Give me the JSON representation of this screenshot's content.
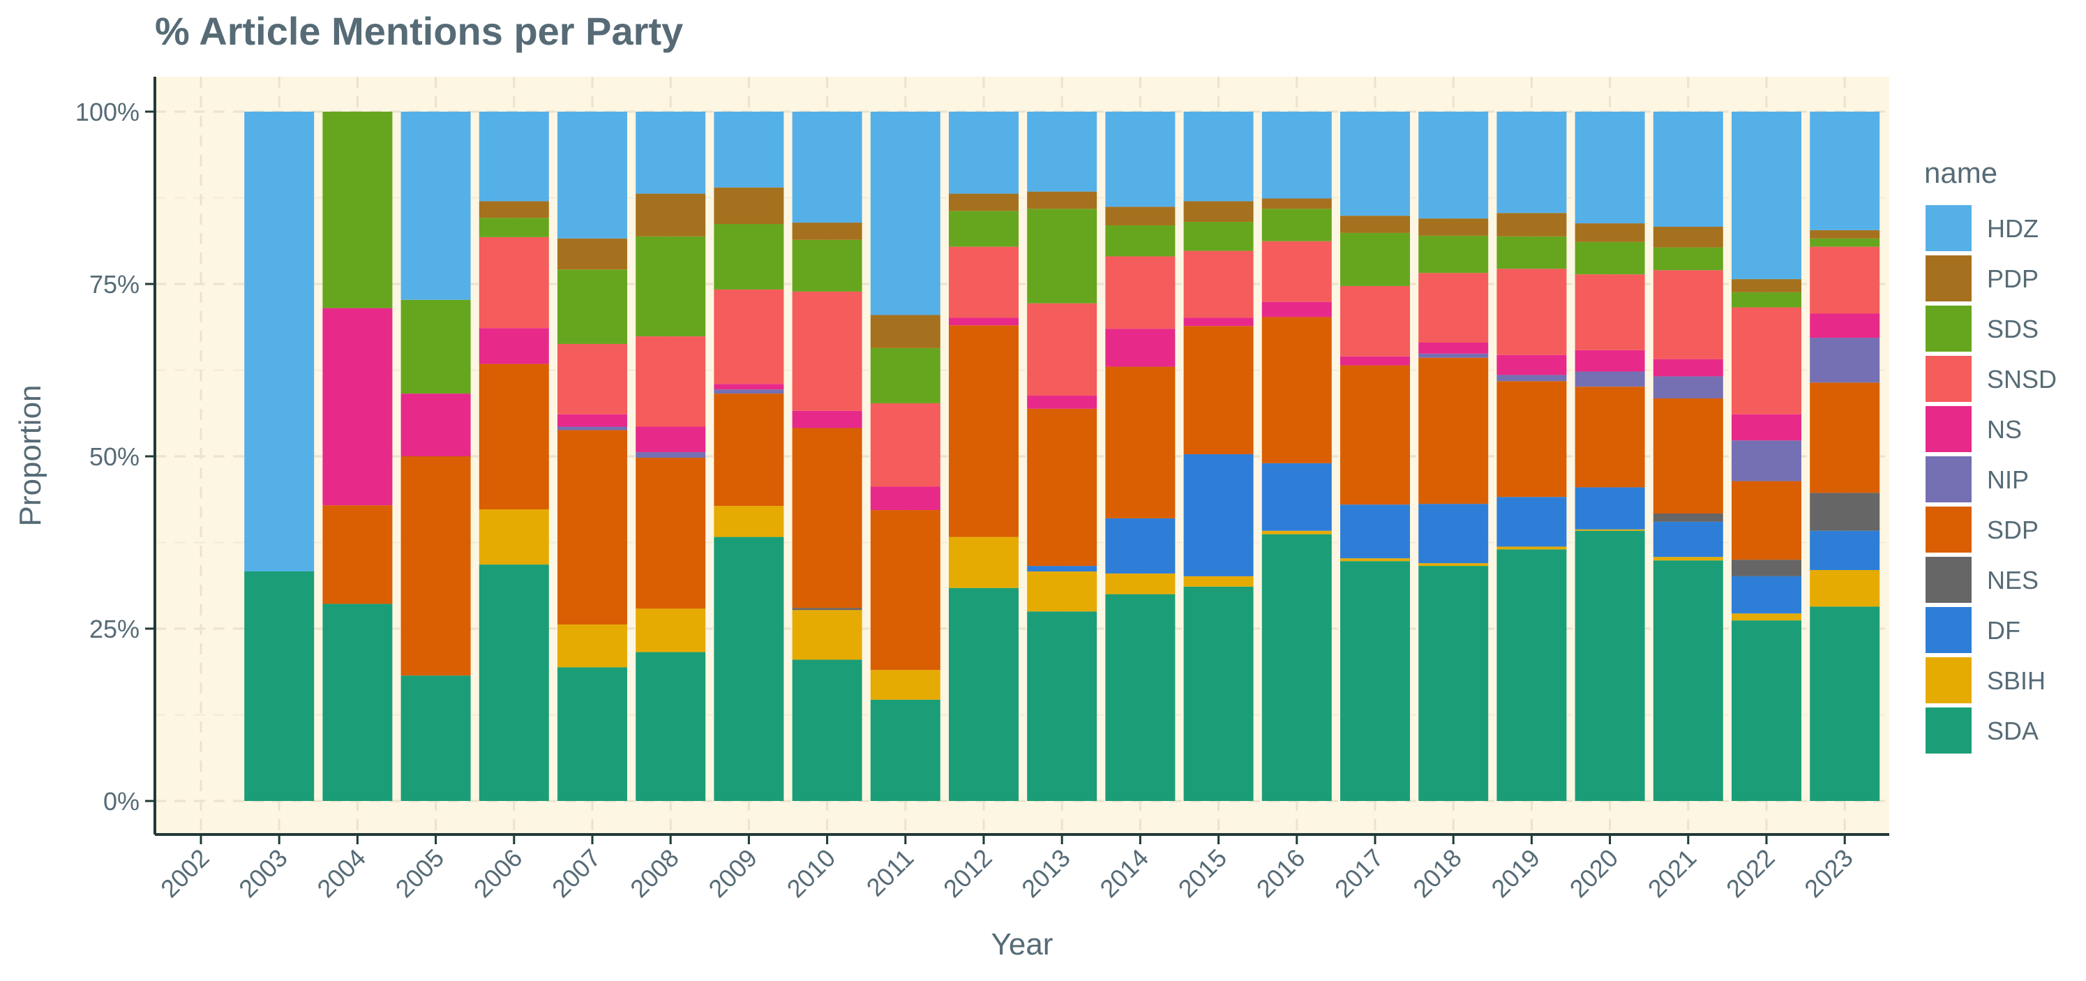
{
  "chart_data": {
    "type": "bar",
    "stacked": true,
    "title": "% Article Mentions per Party",
    "xlabel": "Year",
    "ylabel": "Proportion",
    "ylim": [
      0,
      1
    ],
    "y_ticks": [
      0,
      0.25,
      0.5,
      0.75,
      1.0
    ],
    "y_tick_labels": [
      "0%",
      "25%",
      "50%",
      "75%",
      "100%"
    ],
    "x_ticks": [
      "2002",
      "2003",
      "2004",
      "2005",
      "2006",
      "2007",
      "2008",
      "2009",
      "2010",
      "2011",
      "2012",
      "2013",
      "2014",
      "2015",
      "2016",
      "2017",
      "2018",
      "2019",
      "2020",
      "2021",
      "2022",
      "2023"
    ],
    "categories": [
      "2003",
      "2004",
      "2005",
      "2006",
      "2007",
      "2008",
      "2009",
      "2010",
      "2011",
      "2012",
      "2013",
      "2014",
      "2015",
      "2016",
      "2017",
      "2018",
      "2019",
      "2020",
      "2021",
      "2022",
      "2023"
    ],
    "legend_title": "name",
    "legend_position": "right",
    "grid": true,
    "panel_background": "#fdf6e3",
    "series": [
      {
        "name": "SDA",
        "color": "#1b9e77",
        "values": [
          0.333,
          0.286,
          0.182,
          0.343,
          0.194,
          0.216,
          0.383,
          0.205,
          0.147,
          0.309,
          0.275,
          0.3,
          0.311,
          0.387,
          0.348,
          0.341,
          0.365,
          0.392,
          0.349,
          0.262,
          0.282
        ]
      },
      {
        "name": "SBIH",
        "color": "#e6ab02",
        "values": [
          0,
          0,
          0,
          0.08,
          0.062,
          0.063,
          0.045,
          0.072,
          0.043,
          0.074,
          0.058,
          0.03,
          0.015,
          0.005,
          0.004,
          0.004,
          0.004,
          0.002,
          0.005,
          0.01,
          0.053
        ]
      },
      {
        "name": "DF",
        "color": "#2e7ed8",
        "values": [
          0,
          0,
          0,
          0,
          0,
          0,
          0,
          0,
          0,
          0,
          0.008,
          0.08,
          0.177,
          0.098,
          0.078,
          0.086,
          0.072,
          0.061,
          0.051,
          0.054,
          0.057
        ]
      },
      {
        "name": "NES",
        "color": "#666666",
        "values": [
          0,
          0,
          0,
          0,
          0,
          0,
          0,
          0.003,
          0,
          0,
          0,
          0,
          0,
          0,
          0,
          0,
          0,
          0,
          0.012,
          0.024,
          0.055
        ]
      },
      {
        "name": "SDP",
        "color": "#d95f02",
        "values": [
          0,
          0.143,
          0.318,
          0.211,
          0.282,
          0.219,
          0.163,
          0.261,
          0.232,
          0.307,
          0.228,
          0.22,
          0.186,
          0.212,
          0.202,
          0.212,
          0.168,
          0.146,
          0.167,
          0.114,
          0.16
        ]
      },
      {
        "name": "NIP",
        "color": "#7570b3",
        "values": [
          0,
          0,
          0,
          0,
          0.005,
          0.008,
          0.006,
          0,
          0,
          0,
          0,
          0,
          0,
          0,
          0,
          0.006,
          0.009,
          0.022,
          0.032,
          0.059,
          0.065
        ]
      },
      {
        "name": "NS",
        "color": "#e7298a",
        "values": [
          0,
          0.286,
          0.091,
          0.052,
          0.018,
          0.037,
          0.008,
          0.025,
          0.034,
          0.011,
          0.019,
          0.055,
          0.012,
          0.022,
          0.013,
          0.016,
          0.029,
          0.031,
          0.025,
          0.038,
          0.035
        ]
      },
      {
        "name": "SNSD",
        "color": "#f55c5c",
        "values": [
          0,
          0,
          0,
          0.132,
          0.102,
          0.131,
          0.137,
          0.173,
          0.121,
          0.103,
          0.134,
          0.105,
          0.097,
          0.088,
          0.102,
          0.101,
          0.125,
          0.11,
          0.129,
          0.155,
          0.097
        ]
      },
      {
        "name": "SDS",
        "color": "#66a61e",
        "values": [
          0,
          0.285,
          0.136,
          0.028,
          0.108,
          0.145,
          0.095,
          0.075,
          0.08,
          0.052,
          0.137,
          0.045,
          0.042,
          0.047,
          0.077,
          0.054,
          0.047,
          0.047,
          0.033,
          0.022,
          0.012
        ]
      },
      {
        "name": "PDP",
        "color": "#a6711e",
        "values": [
          0,
          0,
          0,
          0.024,
          0.045,
          0.062,
          0.053,
          0.025,
          0.048,
          0.025,
          0.025,
          0.027,
          0.03,
          0.015,
          0.025,
          0.025,
          0.034,
          0.027,
          0.03,
          0.019,
          0.012
        ]
      },
      {
        "name": "HDZ",
        "color": "#56b0e8",
        "values": [
          0.667,
          0,
          0.273,
          0.13,
          0.184,
          0.119,
          0.11,
          0.161,
          0.295,
          0.119,
          0.116,
          0.138,
          0.13,
          0.126,
          0.151,
          0.155,
          0.147,
          0.162,
          0.167,
          0.243,
          0.172
        ]
      }
    ],
    "legend_order": [
      "HDZ",
      "PDP",
      "SDS",
      "SNSD",
      "NS",
      "NIP",
      "SDP",
      "NES",
      "DF",
      "SBIH",
      "SDA"
    ]
  }
}
